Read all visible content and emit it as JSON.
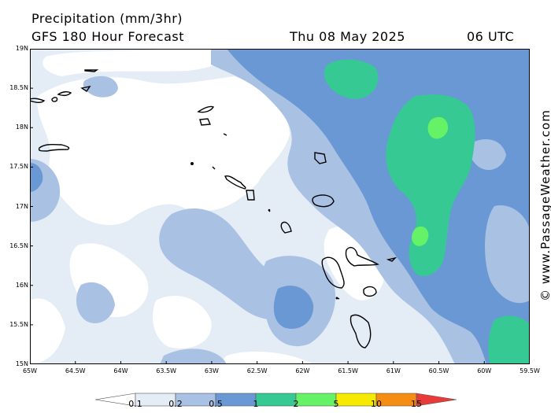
{
  "header": {
    "title": "Precipitation (mm/3hr)",
    "subtitle": "GFS 180 Hour Forecast",
    "date": "Thu 08 May 2025",
    "time": "06 UTC"
  },
  "map": {
    "lat_labels": [
      "19N",
      "18.5N",
      "18N",
      "17.5N",
      "17N",
      "16.5N",
      "16N",
      "15.5N",
      "15N"
    ],
    "lon_labels": [
      "65W",
      "64.5W",
      "64W",
      "63.5W",
      "63W",
      "62.5W",
      "62W",
      "61.5W",
      "61W",
      "60.5W",
      "60W",
      "59.5W"
    ]
  },
  "watermark": "© www.PassageWeather.com",
  "legend": {
    "colors": [
      "#ffffff",
      "#e4ecf6",
      "#a9c1e3",
      "#6a98d4",
      "#36c994",
      "#66f266",
      "#f5ea00",
      "#f58d12",
      "#e93a3a"
    ],
    "labels": [
      "0.1",
      "0.2",
      "0.5",
      "1",
      "2",
      "5",
      "10",
      "15"
    ]
  }
}
